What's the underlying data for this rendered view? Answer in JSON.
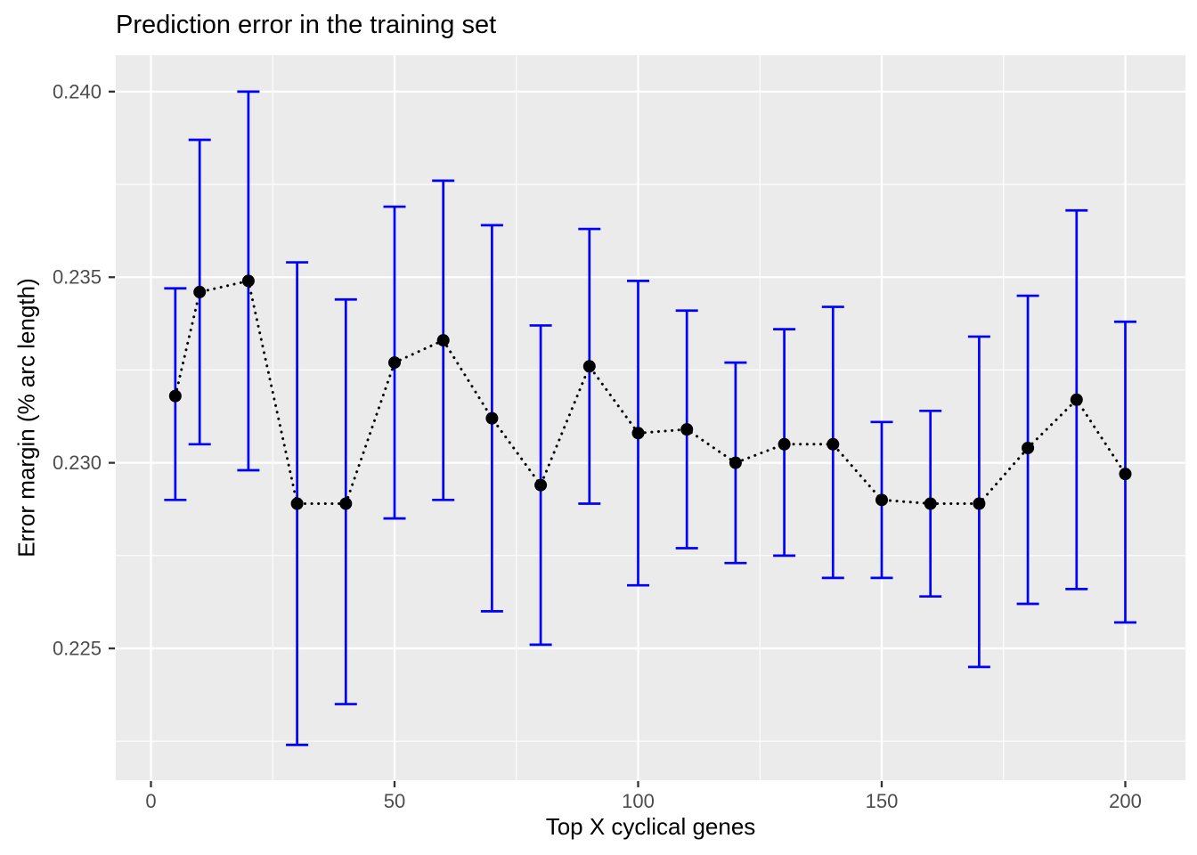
{
  "chart_data": {
    "type": "line",
    "style": "points connected by dotted line with vertical error bars (ggplot2 theme_grey)",
    "title": "Prediction error in the training set",
    "xlabel": "Top X cyclical genes",
    "ylabel": "Error margin (% arc length)",
    "x": [
      5,
      10,
      20,
      30,
      40,
      50,
      60,
      70,
      80,
      90,
      100,
      110,
      120,
      130,
      140,
      150,
      160,
      170,
      180,
      190,
      200
    ],
    "series": [
      {
        "name": "error margin",
        "y": [
          0.2318,
          0.2346,
          0.2349,
          0.2289,
          0.2289,
          0.2327,
          0.2333,
          0.2312,
          0.2294,
          0.2326,
          0.2308,
          0.2309,
          0.23,
          0.2305,
          0.2305,
          0.229,
          0.2289,
          0.2289,
          0.2304,
          0.2317,
          0.2297
        ],
        "ymin": [
          0.229,
          0.2305,
          0.2298,
          0.2224,
          0.2235,
          0.2285,
          0.229,
          0.226,
          0.2251,
          0.2289,
          0.2267,
          0.2277,
          0.2273,
          0.2275,
          0.2269,
          0.2269,
          0.2264,
          0.2245,
          0.2262,
          0.2266,
          0.2257
        ],
        "ymax": [
          0.2347,
          0.2387,
          0.24,
          0.2354,
          0.2344,
          0.2369,
          0.2376,
          0.2364,
          0.2337,
          0.2363,
          0.2349,
          0.2341,
          0.2327,
          0.2336,
          0.2342,
          0.2311,
          0.2314,
          0.2334,
          0.2345,
          0.2368,
          0.2338
        ]
      }
    ],
    "xlim": [
      -7.22,
      212.34
    ],
    "ylim": [
      0.22145,
      0.24098
    ],
    "x_tick_values": [
      0,
      50,
      100,
      150,
      200
    ],
    "x_tick_labels": [
      "0",
      "50",
      "100",
      "150",
      "200"
    ],
    "y_tick_values": [
      0.225,
      0.23,
      0.235,
      0.24
    ],
    "y_tick_labels": [
      "0.225",
      "0.230",
      "0.235",
      "0.240"
    ],
    "x_minor_values": [
      25,
      75,
      125,
      175
    ],
    "y_minor_values": [
      0.2225,
      0.2275,
      0.2325,
      0.2375
    ],
    "grid": "on",
    "legend": "none",
    "colors": {
      "errorbar": "#0000FF",
      "point": "#000000",
      "dotted_line": "#000000",
      "panel_background": "#EBEBEB",
      "gridline": "#FFFFFF",
      "tick_mark": "#333333",
      "tick_label": "#4D4D4D",
      "title_text": "#000000",
      "page_background": "#FFFFFF"
    }
  }
}
